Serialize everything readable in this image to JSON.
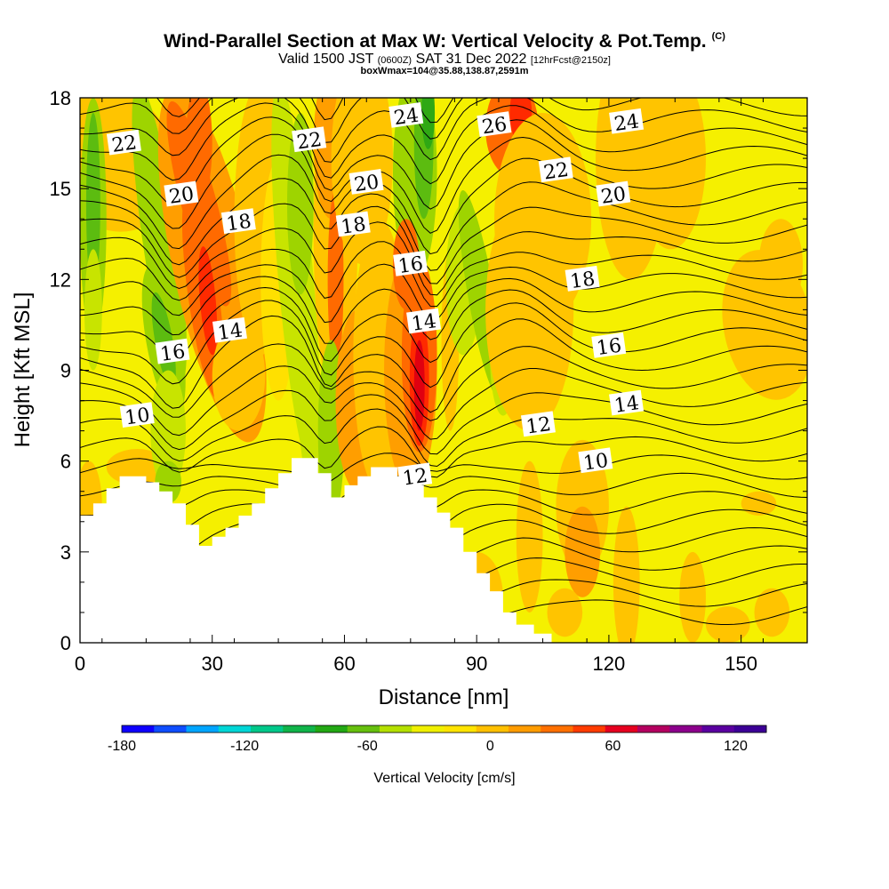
{
  "header": {
    "title": "Wind-Parallel Section at Max W: Vertical Velocity & Pot.Temp.",
    "copyright": "(C)",
    "valid_prefix": "Valid 1500 JST",
    "valid_zulu": "(0600Z)",
    "valid_date": "SAT 31 Dec 2022",
    "forecast": "[12hrFcst@2150z]",
    "box_info": "boxWmax=104@35.88,138.87,2591m"
  },
  "chart_data": {
    "type": "heatmap",
    "xlabel": "Distance [nm]",
    "ylabel": "Height [Kft MSL]",
    "xlim": [
      0,
      165
    ],
    "ylim": [
      0,
      18
    ],
    "xticks": [
      0,
      30,
      60,
      90,
      120,
      150
    ],
    "yticks": [
      0,
      3,
      6,
      9,
      12,
      15,
      18
    ],
    "grid": false,
    "colorbar": {
      "label": "Vertical Velocity [cm/s]",
      "range": [
        -180,
        135
      ],
      "tick_values": [
        -180,
        -120,
        -60,
        0,
        60,
        120
      ],
      "tick_labels": [
        "-180",
        "-120",
        "-60",
        "0",
        "60",
        "120"
      ],
      "colors": [
        "#0f00ff",
        "#0f4eff",
        "#00a5ff",
        "#00d6d6",
        "#00c88a",
        "#10b44a",
        "#22a814",
        "#66c00e",
        "#b4e000",
        "#f0f000",
        "#ffe400",
        "#ffc000",
        "#ff9c00",
        "#ff7000",
        "#ff3c00",
        "#e60020",
        "#b40060",
        "#8c008c",
        "#5a00a0",
        "#3c0096"
      ]
    },
    "terrain_kft": [
      [
        0,
        4.2
      ],
      [
        3,
        4.2
      ],
      [
        3,
        4.6
      ],
      [
        6,
        4.6
      ],
      [
        6,
        5.1
      ],
      [
        9,
        5.1
      ],
      [
        9,
        5.5
      ],
      [
        15,
        5.5
      ],
      [
        15,
        5.3
      ],
      [
        18,
        5.3
      ],
      [
        18,
        5.0
      ],
      [
        21,
        5.0
      ],
      [
        21,
        4.6
      ],
      [
        24,
        4.6
      ],
      [
        24,
        3.9
      ],
      [
        27,
        3.9
      ],
      [
        27,
        3.2
      ],
      [
        30,
        3.2
      ],
      [
        30,
        3.5
      ],
      [
        33,
        3.5
      ],
      [
        33,
        3.8
      ],
      [
        36,
        3.8
      ],
      [
        36,
        4.2
      ],
      [
        39,
        4.2
      ],
      [
        39,
        4.6
      ],
      [
        42,
        4.6
      ],
      [
        42,
        5.1
      ],
      [
        45,
        5.1
      ],
      [
        45,
        5.6
      ],
      [
        48,
        5.6
      ],
      [
        48,
        6.1
      ],
      [
        54,
        6.1
      ],
      [
        54,
        5.6
      ],
      [
        57,
        5.6
      ],
      [
        57,
        4.8
      ],
      [
        60,
        4.8
      ],
      [
        60,
        5.2
      ],
      [
        63,
        5.2
      ],
      [
        63,
        5.5
      ],
      [
        66,
        5.5
      ],
      [
        66,
        5.8
      ],
      [
        72,
        5.8
      ],
      [
        72,
        5.5
      ],
      [
        75,
        5.5
      ],
      [
        75,
        5.2
      ],
      [
        78,
        5.2
      ],
      [
        78,
        4.8
      ],
      [
        81,
        4.8
      ],
      [
        81,
        4.3
      ],
      [
        84,
        4.3
      ],
      [
        84,
        3.8
      ],
      [
        87,
        3.8
      ],
      [
        87,
        3.0
      ],
      [
        90,
        3.0
      ],
      [
        90,
        2.3
      ],
      [
        93,
        2.3
      ],
      [
        93,
        1.7
      ],
      [
        96,
        1.7
      ],
      [
        96,
        1.0
      ],
      [
        99,
        1.0
      ],
      [
        99,
        0.6
      ],
      [
        103,
        0.6
      ],
      [
        103,
        0.3
      ],
      [
        107,
        0.3
      ],
      [
        107,
        0
      ],
      [
        165,
        0
      ]
    ],
    "contour_labels": [
      {
        "text": "22",
        "x": 10,
        "y": 16.5
      },
      {
        "text": "20",
        "x": 23,
        "y": 14.8
      },
      {
        "text": "18",
        "x": 36,
        "y": 13.9
      },
      {
        "text": "16",
        "x": 21,
        "y": 9.6
      },
      {
        "text": "14",
        "x": 34,
        "y": 10.3
      },
      {
        "text": "10",
        "x": 13,
        "y": 7.5
      },
      {
        "text": "22",
        "x": 52,
        "y": 16.6
      },
      {
        "text": "20",
        "x": 65,
        "y": 15.2
      },
      {
        "text": "18",
        "x": 62,
        "y": 13.8
      },
      {
        "text": "24",
        "x": 74,
        "y": 17.4
      },
      {
        "text": "16",
        "x": 75,
        "y": 12.5
      },
      {
        "text": "14",
        "x": 78,
        "y": 10.6
      },
      {
        "text": "12",
        "x": 76,
        "y": 5.5
      },
      {
        "text": "26",
        "x": 94,
        "y": 17.1
      },
      {
        "text": "22",
        "x": 108,
        "y": 15.6
      },
      {
        "text": "24",
        "x": 124,
        "y": 17.2
      },
      {
        "text": "20",
        "x": 121,
        "y": 14.8
      },
      {
        "text": "18",
        "x": 114,
        "y": 12.0
      },
      {
        "text": "16",
        "x": 120,
        "y": 9.8
      },
      {
        "text": "14",
        "x": 124,
        "y": 7.9
      },
      {
        "text": "12",
        "x": 104,
        "y": 7.2
      },
      {
        "text": "10",
        "x": 117,
        "y": 6.0
      }
    ],
    "notable_features": [
      {
        "type": "max_updraft_cm_s",
        "approx_value": 100,
        "x": 77,
        "y": 8.5
      },
      {
        "type": "updraft_cm_s",
        "approx_value": 80,
        "x": 29,
        "y": 11
      },
      {
        "type": "downdraft_cm_s",
        "approx_value": -50,
        "x": 78,
        "y": 16.5
      },
      {
        "type": "downdraft_cm_s",
        "approx_value": -40,
        "x": 19,
        "y": 10
      }
    ]
  }
}
